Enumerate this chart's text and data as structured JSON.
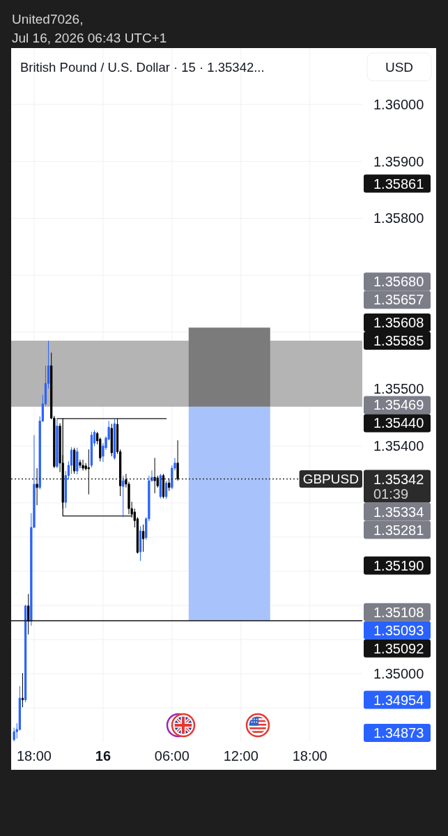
{
  "chart_data": {
    "type": "candlestick",
    "title": "British Pound / U.S. Dollar · 15 · 1.35342...",
    "ylabel": "USD",
    "annotations": [
      "United7026,",
      "Jul 16, 2026 06:43 UTC+1",
      "1.35861",
      "1.35680",
      "1.35657",
      "1.35608",
      "1.35585",
      "1.35469",
      "1.35440",
      "1.35342",
      "01:39",
      "1.35334",
      "1.35281",
      "1.35190",
      "1.35108",
      "1.35093",
      "1.35092",
      "1.34954",
      "1.34873"
    ],
    "x": [
      "2026-07-15T16:15",
      "2026-07-15T16:30",
      "2026-07-15T16:45",
      "2026-07-15T17:00",
      "2026-07-15T17:15",
      "2026-07-15T17:30",
      "2026-07-15T17:45",
      "2026-07-15T18:00",
      "2026-07-15T18:15",
      "2026-07-15T18:30",
      "2026-07-15T18:45",
      "2026-07-15T19:00",
      "2026-07-15T19:15",
      "2026-07-15T19:30",
      "2026-07-15T19:45",
      "2026-07-15T20:00",
      "2026-07-15T20:15",
      "2026-07-15T20:30",
      "2026-07-15T20:45",
      "2026-07-15T21:00",
      "2026-07-15T21:15",
      "2026-07-15T21:30",
      "2026-07-15T21:45",
      "2026-07-15T22:00",
      "2026-07-15T22:15",
      "2026-07-15T22:30",
      "2026-07-15T22:45",
      "2026-07-15T23:00",
      "2026-07-15T23:15",
      "2026-07-15T23:30",
      "2026-07-15T23:45",
      "2026-07-16T00:00",
      "2026-07-16T00:15",
      "2026-07-16T00:30",
      "2026-07-16T00:45",
      "2026-07-16T01:00",
      "2026-07-16T01:15",
      "2026-07-16T01:30",
      "2026-07-16T01:45",
      "2026-07-16T02:00",
      "2026-07-16T02:15",
      "2026-07-16T02:30",
      "2026-07-16T02:45",
      "2026-07-16T03:00",
      "2026-07-16T03:15",
      "2026-07-16T03:30",
      "2026-07-16T03:45",
      "2026-07-16T04:00",
      "2026-07-16T04:15",
      "2026-07-16T04:30",
      "2026-07-16T04:45",
      "2026-07-16T05:00",
      "2026-07-16T05:15",
      "2026-07-16T05:30",
      "2026-07-16T05:45",
      "2026-07-16T06:00",
      "2026-07-16T06:15",
      "2026-07-16T06:30"
    ],
    "ohlc": [
      [
        1.34884,
        1.34905,
        1.34881,
        1.34898
      ],
      [
        1.34898,
        1.34913,
        1.34886,
        1.34902
      ],
      [
        1.34902,
        1.34978,
        1.349,
        1.34957
      ],
      [
        1.34957,
        1.35001,
        1.34941,
        1.34954
      ],
      [
        1.34954,
        1.35121,
        1.3495,
        1.35119
      ],
      [
        1.35119,
        1.3514,
        1.35069,
        1.35092
      ],
      [
        1.35092,
        1.35282,
        1.35084,
        1.35257
      ],
      [
        1.35257,
        1.35419,
        1.35256,
        1.35333
      ],
      [
        1.35333,
        1.35361,
        1.35296,
        1.35327
      ],
      [
        1.35327,
        1.35452,
        1.35324,
        1.35444
      ],
      [
        1.35444,
        1.3549,
        1.35442,
        1.35474
      ],
      [
        1.35474,
        1.35541,
        1.35471,
        1.3551
      ],
      [
        1.3551,
        1.35585,
        1.35501,
        1.35541
      ],
      [
        1.35541,
        1.35564,
        1.35447,
        1.35449
      ],
      [
        1.35449,
        1.35453,
        1.35361,
        1.35364
      ],
      [
        1.35364,
        1.35447,
        1.35361,
        1.35435
      ],
      [
        1.35435,
        1.3544,
        1.35354,
        1.3537
      ],
      [
        1.3537,
        1.35384,
        1.3529,
        1.35301
      ],
      [
        1.35301,
        1.35356,
        1.35291,
        1.35348
      ],
      [
        1.35348,
        1.35373,
        1.35341,
        1.35366
      ],
      [
        1.35366,
        1.35398,
        1.35351,
        1.35393
      ],
      [
        1.35393,
        1.35397,
        1.35351,
        1.35356
      ],
      [
        1.35356,
        1.35397,
        1.3535,
        1.3539
      ],
      [
        1.35371,
        1.35376,
        1.35361,
        1.35366
      ],
      [
        1.35366,
        1.35376,
        1.35357,
        1.35361
      ],
      [
        1.35365,
        1.3537,
        1.35357,
        1.3536
      ],
      [
        1.35362,
        1.35394,
        1.35315,
        1.3536
      ],
      [
        1.35366,
        1.35425,
        1.35362,
        1.35419
      ],
      [
        1.35405,
        1.35428,
        1.354,
        1.35424
      ],
      [
        1.35422,
        1.35425,
        1.35403,
        1.35409
      ],
      [
        1.35412,
        1.35415,
        1.35373,
        1.35379
      ],
      [
        1.35382,
        1.35405,
        1.35372,
        1.354
      ],
      [
        1.35397,
        1.35417,
        1.35393,
        1.35414
      ],
      [
        1.35412,
        1.35444,
        1.3541,
        1.35433
      ],
      [
        1.35431,
        1.35439,
        1.35382,
        1.35388
      ],
      [
        1.35379,
        1.35448,
        1.35376,
        1.35439
      ],
      [
        1.35438,
        1.35448,
        1.35386,
        1.3539
      ],
      [
        1.3539,
        1.35394,
        1.35312,
        1.3533
      ],
      [
        1.35329,
        1.35348,
        1.35275,
        1.35339
      ],
      [
        1.35341,
        1.35351,
        1.35327,
        1.35333
      ],
      [
        1.35333,
        1.35337,
        1.3528,
        1.3529
      ],
      [
        1.3529,
        1.35302,
        1.35274,
        1.3528
      ],
      [
        1.35284,
        1.3529,
        1.35257,
        1.35269
      ],
      [
        1.35272,
        1.35275,
        1.35211,
        1.35213
      ],
      [
        1.35214,
        1.35259,
        1.35198,
        1.35251
      ],
      [
        1.3525,
        1.35262,
        1.35214,
        1.35237
      ],
      [
        1.35239,
        1.35275,
        1.35235,
        1.35272
      ],
      [
        1.35272,
        1.35348,
        1.35268,
        1.35339
      ],
      [
        1.35339,
        1.35357,
        1.35337,
        1.35345
      ],
      [
        1.35345,
        1.35379,
        1.35317,
        1.35339
      ],
      [
        1.35344,
        1.35348,
        1.35327,
        1.3533
      ],
      [
        1.35311,
        1.35351,
        1.35308,
        1.35348
      ],
      [
        1.35348,
        1.35351,
        1.35308,
        1.35311
      ],
      [
        1.35311,
        1.35339,
        1.35307,
        1.35335
      ],
      [
        1.35335,
        1.35343,
        1.35321,
        1.35327
      ],
      [
        1.35327,
        1.35366,
        1.35324,
        1.35361
      ],
      [
        1.35361,
        1.35379,
        1.35357,
        1.3537
      ],
      [
        1.3537,
        1.3541,
        1.35339,
        1.35342
      ]
    ],
    "colors": [
      "#2962ff",
      "#2962ff",
      "#2962ff",
      "#000000",
      "#2962ff",
      "#000000",
      "#2962ff",
      "#2962ff",
      "#000000",
      "#2962ff",
      "#2962ff",
      "#2962ff",
      "#2962ff",
      "#000000",
      "#000000",
      "#2962ff",
      "#000000",
      "#000000",
      "#2962ff",
      "#2962ff",
      "#2962ff",
      "#000000",
      "#2962ff",
      "#000000",
      "#000000",
      "#000000",
      "#000000",
      "#2962ff",
      "#2962ff",
      "#000000",
      "#000000",
      "#2962ff",
      "#2962ff",
      "#2962ff",
      "#000000",
      "#2962ff",
      "#000000",
      "#000000",
      "#2962ff",
      "#000000",
      "#000000",
      "#000000",
      "#000000",
      "#000000",
      "#2962ff",
      "#000000",
      "#2962ff",
      "#2962ff",
      "#2962ff",
      "#000000",
      "#000000",
      "#2962ff",
      "#000000",
      "#2962ff",
      "#000000",
      "#2962ff",
      "#2962ff",
      "#000000"
    ],
    "series": [
      {
        "type": "bar",
        "x": [
          "2026-07-16T11:00",
          "2026-07-16T11:00"
        ],
        "base": [
          1.35469,
          1.35469
        ],
        "values": [
          0.00139,
          -0.00376
        ],
        "colors": [
          "#7b7b7b",
          "#a8c3fc"
        ]
      },
      {
        "type": "line",
        "x": [
          "2026-07-15T20:00",
          "2026-07-16T05:30"
        ],
        "values": [
          1.35448,
          1.35448
        ],
        "color": "#131313"
      },
      {
        "type": "line",
        "x": [
          "2026-07-15T20:30",
          "2026-07-15T20:30",
          "2026-07-16T02:30"
        ],
        "values": [
          1.35448,
          1.35277,
          1.35277
        ],
        "color": "#131313"
      }
    ],
    "xlim": [
      "2026-07-15T16:00",
      "2026-07-16T22:34"
    ],
    "ylim": [
      1.3488,
      1.361
    ],
    "xticks": [
      {
        "value": "2026-07-15T18:00",
        "label": "18:00"
      },
      {
        "value": "2026-07-16T00:00",
        "label": "16"
      },
      {
        "value": "2026-07-16T06:00",
        "label": "06:00"
      },
      {
        "value": "2026-07-16T12:00",
        "label": "12:00"
      },
      {
        "value": "2026-07-16T18:00",
        "label": "18:00"
      }
    ],
    "yticks": [
      {
        "value": 1.3494,
        "label": null
      },
      {
        "value": 1.35,
        "label": "1.35000"
      },
      {
        "value": 1.3506,
        "label": null
      },
      {
        "value": 1.3512,
        "label": null
      },
      {
        "value": 1.3518,
        "label": null
      },
      {
        "value": 1.3524,
        "label": null
      },
      {
        "value": 1.353,
        "label": null
      },
      {
        "value": 1.354,
        "label": "1.35400"
      },
      {
        "value": 1.355,
        "label": "1.35500"
      },
      {
        "value": 1.356,
        "label": null
      },
      {
        "value": 1.357,
        "label": null
      },
      {
        "value": 1.358,
        "label": "1.35800"
      },
      {
        "value": 1.359,
        "label": "1.35900"
      },
      {
        "value": 1.36,
        "label": "1.36000"
      }
    ],
    "grid": true,
    "bands": [
      {
        "axis": "y",
        "from": 1.35469,
        "to": 1.35585,
        "color": "#b4b4b4"
      }
    ],
    "ref_lines": [
      {
        "axis": "y",
        "value": 1.35342,
        "label": "GBPUSD",
        "line_style": "dotted",
        "color": "#2b2b2b"
      },
      {
        "axis": "y",
        "value": 1.35093,
        "color": "#131313"
      }
    ]
  }
}
